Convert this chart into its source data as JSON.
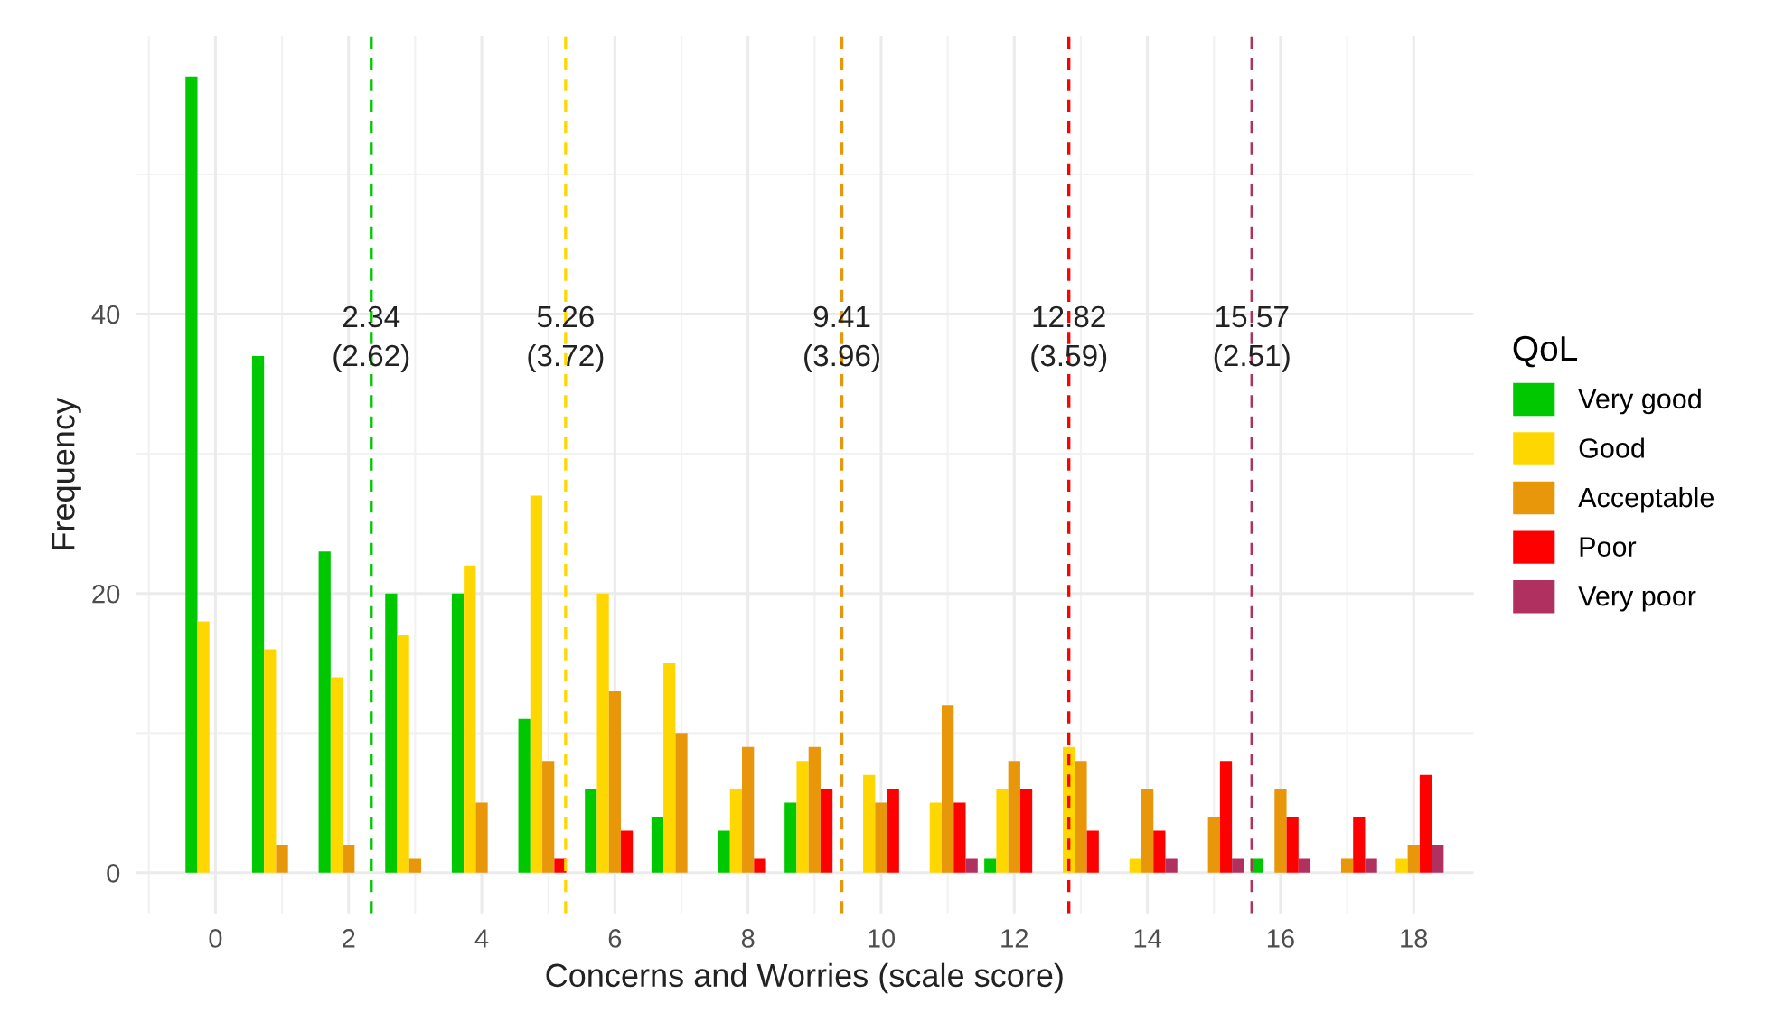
{
  "chart_data": {
    "type": "bar",
    "xlabel": "Concerns and Worries (scale score)",
    "ylabel": "Frequency",
    "legend_title": "QoL",
    "x": [
      0,
      1,
      2,
      3,
      4,
      5,
      6,
      7,
      8,
      9,
      10,
      11,
      12,
      13,
      14,
      15,
      16,
      17,
      18
    ],
    "xlim": [
      -1.2,
      18.9
    ],
    "xticks": [
      0,
      2,
      4,
      6,
      8,
      10,
      12,
      14,
      16,
      18
    ],
    "ylim": [
      -2.9,
      59.9
    ],
    "yticks": [
      0,
      20,
      40
    ],
    "grid": true,
    "legend": "right",
    "series": [
      {
        "name": "Very good",
        "color": "#00c800",
        "values": [
          57,
          37,
          23,
          20,
          20,
          11,
          6,
          4,
          3,
          5,
          null,
          null,
          1,
          null,
          null,
          null,
          1,
          null,
          null
        ]
      },
      {
        "name": "Good",
        "color": "#ffd700",
        "values": [
          18,
          16,
          14,
          17,
          22,
          27,
          20,
          15,
          6,
          8,
          7,
          5,
          6,
          9,
          1,
          null,
          null,
          null,
          1
        ]
      },
      {
        "name": "Acceptable",
        "color": "#e8960a",
        "values": [
          null,
          2,
          2,
          1,
          5,
          8,
          13,
          10,
          9,
          9,
          5,
          12,
          8,
          8,
          6,
          4,
          6,
          1,
          2
        ]
      },
      {
        "name": "Poor",
        "color": "#ff0000",
        "values": [
          null,
          null,
          null,
          null,
          null,
          1,
          3,
          null,
          1,
          6,
          6,
          5,
          6,
          3,
          3,
          8,
          4,
          4,
          7
        ]
      },
      {
        "name": "Very poor",
        "color": "#b03060",
        "values": [
          null,
          null,
          null,
          null,
          null,
          null,
          null,
          null,
          null,
          null,
          null,
          1,
          null,
          null,
          1,
          1,
          1,
          1,
          2
        ]
      }
    ],
    "ref_lines": [
      {
        "axis": "x",
        "value": 2.34,
        "label": "2.34\n(2.62)",
        "color": "#00c800",
        "line_style": "dashed"
      },
      {
        "axis": "x",
        "value": 5.26,
        "label": "5.26\n(3.72)",
        "color": "#ffd700",
        "line_style": "dashed"
      },
      {
        "axis": "x",
        "value": 9.41,
        "label": "9.41\n(3.96)",
        "color": "#e8960a",
        "line_style": "dashed"
      },
      {
        "axis": "x",
        "value": 12.82,
        "label": "12.82\n(3.59)",
        "color": "#ff0000",
        "line_style": "dashed"
      },
      {
        "axis": "x",
        "value": 15.57,
        "label": "15.57\n(2.51)",
        "color": "#b03060",
        "line_style": "dashed"
      }
    ]
  }
}
